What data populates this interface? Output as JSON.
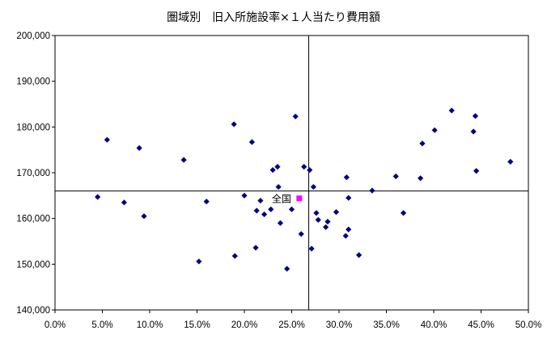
{
  "chart_data": {
    "type": "scatter",
    "title": "圏域別　旧入所施設率×１人当たり費用額",
    "xlabel": "",
    "ylabel": "",
    "xlim": [
      0,
      50
    ],
    "ylim": [
      140000,
      200000
    ],
    "x_ticks": [
      "0.0%",
      "5.0%",
      "10.0%",
      "15.0%",
      "20.0%",
      "25.0%",
      "30.0%",
      "35.0%",
      "40.0%",
      "45.0%",
      "50.0%"
    ],
    "y_ticks": [
      "140,000",
      "150,000",
      "160,000",
      "170,000",
      "180,000",
      "190,000",
      "200,000"
    ],
    "grid": false,
    "reference_lines": {
      "x": 26.8,
      "y": 166000
    },
    "series": [
      {
        "color": "#000080",
        "marker": "diamond",
        "points": [
          [
            4.5,
            164700
          ],
          [
            5.5,
            177200
          ],
          [
            7.3,
            163500
          ],
          [
            8.9,
            175400
          ],
          [
            9.4,
            160500
          ],
          [
            13.6,
            172800
          ],
          [
            15.2,
            150600
          ],
          [
            16.0,
            163700
          ],
          [
            18.9,
            180600
          ],
          [
            19.0,
            151800
          ],
          [
            20.0,
            165000
          ],
          [
            20.8,
            176700
          ],
          [
            21.2,
            153600
          ],
          [
            21.3,
            161700
          ],
          [
            21.7,
            163900
          ],
          [
            22.1,
            160900
          ],
          [
            22.8,
            162000
          ],
          [
            23.0,
            170600
          ],
          [
            23.5,
            171300
          ],
          [
            23.6,
            166900
          ],
          [
            23.8,
            159000
          ],
          [
            24.5,
            149000
          ],
          [
            25.0,
            162000
          ],
          [
            25.4,
            182300
          ],
          [
            26.0,
            156600
          ],
          [
            26.3,
            171300
          ],
          [
            26.9,
            170600
          ],
          [
            27.1,
            153400
          ],
          [
            27.3,
            166900
          ],
          [
            27.6,
            161200
          ],
          [
            27.8,
            159700
          ],
          [
            28.6,
            158100
          ],
          [
            28.8,
            159300
          ],
          [
            29.7,
            161400
          ],
          [
            30.7,
            156200
          ],
          [
            30.8,
            169000
          ],
          [
            31.0,
            157600
          ],
          [
            31.0,
            164500
          ],
          [
            32.1,
            152000
          ],
          [
            33.5,
            166100
          ],
          [
            36.0,
            169200
          ],
          [
            36.8,
            161200
          ],
          [
            38.6,
            168800
          ],
          [
            38.8,
            176400
          ],
          [
            40.1,
            179300
          ],
          [
            41.9,
            183600
          ],
          [
            44.2,
            179000
          ],
          [
            44.4,
            182400
          ],
          [
            44.5,
            170400
          ],
          [
            48.1,
            172400
          ]
        ]
      },
      {
        "name": "全国",
        "color": "#ff00ff",
        "marker": "square",
        "points": [
          [
            25.8,
            164400
          ]
        ]
      }
    ]
  }
}
